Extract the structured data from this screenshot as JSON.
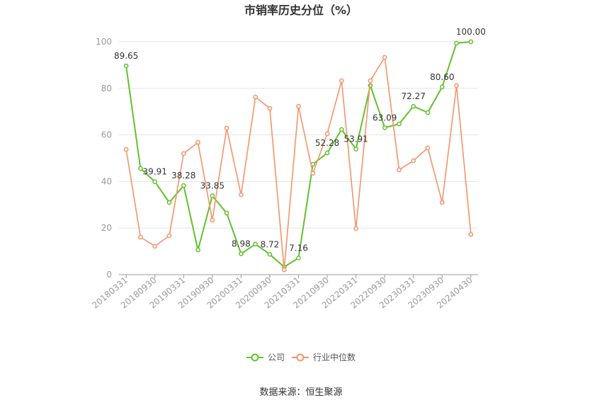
{
  "source": "数据来源：恒生聚源",
  "colors": {
    "grid": "#e6e6e6",
    "axis_text": "#999999",
    "label_text": "#333333"
  },
  "chart_data": {
    "type": "line",
    "title": "市销率历史分位（%）",
    "categories": [
      "20180331",
      "",
      "20180930",
      "",
      "20190331",
      "",
      "20190930",
      "",
      "20200331",
      "",
      "20200930",
      "",
      "20210331",
      "",
      "20210930",
      "",
      "20220331",
      "",
      "20220930",
      "",
      "20230331",
      "",
      "20230930",
      "",
      "20240430"
    ],
    "yticks": [
      0,
      20,
      40,
      60,
      80,
      100
    ],
    "ylim": [
      0,
      100
    ],
    "grid": true,
    "legend_position": "bottom",
    "series": [
      {
        "name": "公司",
        "color": "#62c12e",
        "values": [
          89.65,
          45.6,
          39.91,
          31.0,
          38.28,
          10.6,
          33.85,
          26.4,
          8.98,
          13.1,
          8.72,
          3.3,
          7.16,
          47.4,
          52.28,
          62.3,
          53.91,
          81.2,
          63.09,
          64.7,
          72.27,
          69.6,
          80.6,
          99.4,
          100.0
        ],
        "labels": [
          "89.65",
          "",
          "39.91",
          "",
          "38.28",
          "",
          "33.85",
          "",
          "8.98",
          "",
          "8.72",
          "",
          "7.16",
          "",
          "52.28",
          "",
          "53.91",
          "",
          "63.09",
          "",
          "72.27",
          "",
          "80.60",
          "",
          "100.00"
        ]
      },
      {
        "name": "行业中位数",
        "color": "#f4946a",
        "values": [
          53.8,
          16.1,
          12.2,
          16.7,
          52.0,
          56.8,
          23.4,
          62.9,
          34.3,
          76.3,
          71.4,
          2.1,
          72.3,
          43.5,
          60.5,
          83.3,
          19.8,
          83.3,
          93.3,
          45.0,
          48.9,
          54.4,
          31.0,
          81.2,
          17.3
        ]
      }
    ]
  }
}
